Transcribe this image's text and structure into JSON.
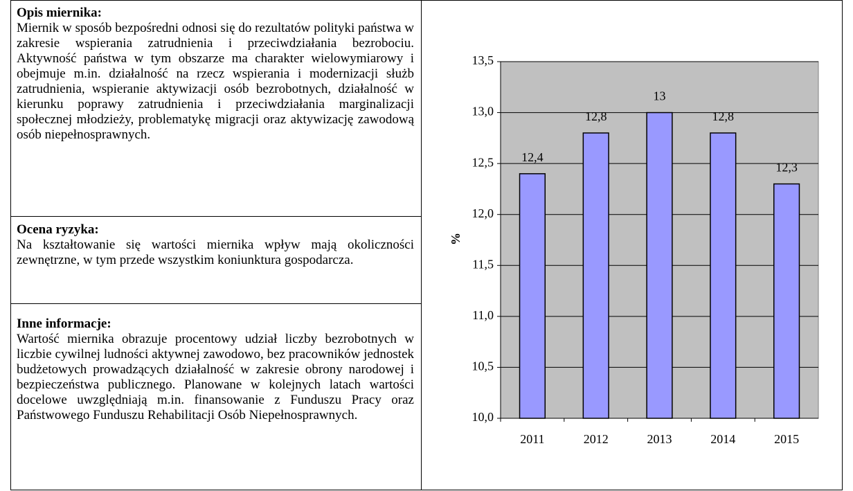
{
  "sections": [
    {
      "heading": "Opis miernika:",
      "text": "Miernik w sposób bezpośredni odnosi się do rezultatów polityki państwa w zakresie wspierania zatrudnienia i przeciwdziałania bezrobociu. Aktywność państwa w tym obszarze ma charakter wielowymiarowy i obejmuje m.in. działalność na rzecz wspierania i modernizacji służb zatrudnienia, wspieranie aktywizacji osób bezrobotnych, działalność w kierunku poprawy zatrudnienia i przeciwdziałania marginalizacji społecznej młodzieży, problematykę migracji oraz aktywizację zawodową osób niepełnosprawnych."
    },
    {
      "heading": "Ocena ryzyka:",
      "text": "Na kształtowanie się wartości miernika wpływ mają okoliczności zewnętrzne, w tym przede wszystkim koniunktura gospodarcza."
    },
    {
      "heading": "Inne informacje:",
      "text": "Wartość miernika obrazuje procentowy udział liczby bezrobotnych w liczbie cywilnej ludności aktywnej zawodowo, bez pracowników jednostek budżetowych prowadzących działalność w zakresie obrony narodowej i bezpieczeństwa publicznego. Planowane w kolejnych latach wartości docelowe uwzględniają m.in. finansowanie z Funduszu Pracy oraz Państwowego Funduszu Rehabilitacji Osób Niepełnosprawnych."
    }
  ],
  "chart_data": {
    "type": "bar",
    "ylabel": "%",
    "categories": [
      "2011",
      "2012",
      "2013",
      "2014",
      "2015"
    ],
    "values": [
      12.4,
      12.8,
      13,
      12.8,
      12.3
    ],
    "value_labels": [
      "12,4",
      "12,8",
      "13",
      "12,8",
      "12,3"
    ],
    "color": "#9999ff",
    "background": "#c0c0c0",
    "grid": true,
    "ylim": [
      10,
      13.5
    ],
    "yticks": [
      {
        "value": 10,
        "label": "10,0"
      },
      {
        "value": 10.5,
        "label": "10,5"
      },
      {
        "value": 11,
        "label": "11,0"
      },
      {
        "value": 11.5,
        "label": "11,5"
      },
      {
        "value": 12,
        "label": "12,0"
      },
      {
        "value": 12.5,
        "label": "12,5"
      },
      {
        "value": 13,
        "label": "13,0"
      },
      {
        "value": 13.5,
        "label": "13,5"
      }
    ]
  }
}
